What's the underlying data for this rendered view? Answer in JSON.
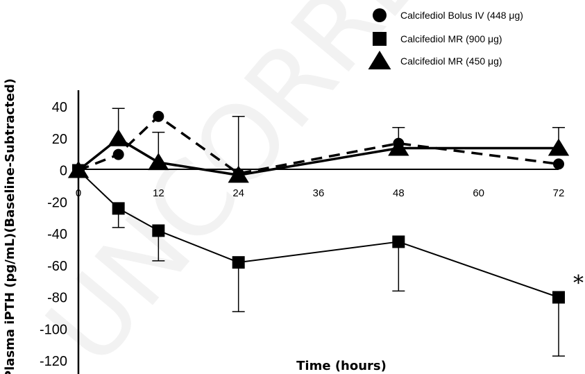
{
  "chart_data": {
    "type": "line",
    "title": "",
    "xlabel": "Time (hours)",
    "ylabel": "Plasma iPTH (pg/mL)(Baseline-Subtracted)",
    "xlim": [
      0,
      72
    ],
    "ylim": [
      -120,
      40
    ],
    "xticks": [
      "0",
      "12",
      "24",
      "36",
      "48",
      "60",
      "72"
    ],
    "yticks": [
      "40",
      "20",
      "0",
      "-20",
      "-40",
      "-60",
      "-80",
      "-100",
      "-120"
    ],
    "legend_position": "top-right",
    "grid": false,
    "annotation": "*",
    "watermark": "UNCORRECTED",
    "series": [
      {
        "name": "Calcifediol Bolus IV (448 μg)",
        "marker": "circle",
        "line_style": "dashed",
        "points": [
          {
            "x": 0,
            "y": 0
          },
          {
            "x": 6,
            "y": 10
          },
          {
            "x": 12,
            "y": 34
          },
          {
            "x": 24,
            "y": -2
          },
          {
            "x": 48,
            "y": 17
          },
          {
            "x": 72,
            "y": 4
          }
        ]
      },
      {
        "name": "Calcifediol MR (900 μg)",
        "marker": "square",
        "line_style": "solid-thin",
        "points": [
          {
            "x": 0,
            "y": 0,
            "err_plus": 0,
            "err_minus": 0
          },
          {
            "x": 6,
            "y": -24,
            "err_plus": 0,
            "err_minus": 12
          },
          {
            "x": 12,
            "y": -38,
            "err_plus": 0,
            "err_minus": 19
          },
          {
            "x": 24,
            "y": -58,
            "err_plus": 0,
            "err_minus": 31
          },
          {
            "x": 48,
            "y": -45,
            "err_plus": 0,
            "err_minus": 31
          },
          {
            "x": 72,
            "y": -80,
            "err_plus": 0,
            "err_minus": 37
          }
        ]
      },
      {
        "name": "Calcifediol MR (450 μg)",
        "marker": "triangle",
        "line_style": "solid-thick",
        "points": [
          {
            "x": 0,
            "y": 0,
            "err_plus": 0
          },
          {
            "x": 6,
            "y": 20,
            "err_plus": 19
          },
          {
            "x": 12,
            "y": 5,
            "err_plus": 19
          },
          {
            "x": 24,
            "y": -3,
            "err_plus": 37
          },
          {
            "x": 48,
            "y": 14,
            "err_plus": 13
          },
          {
            "x": 72,
            "y": 14,
            "err_plus": 13
          }
        ]
      }
    ]
  }
}
